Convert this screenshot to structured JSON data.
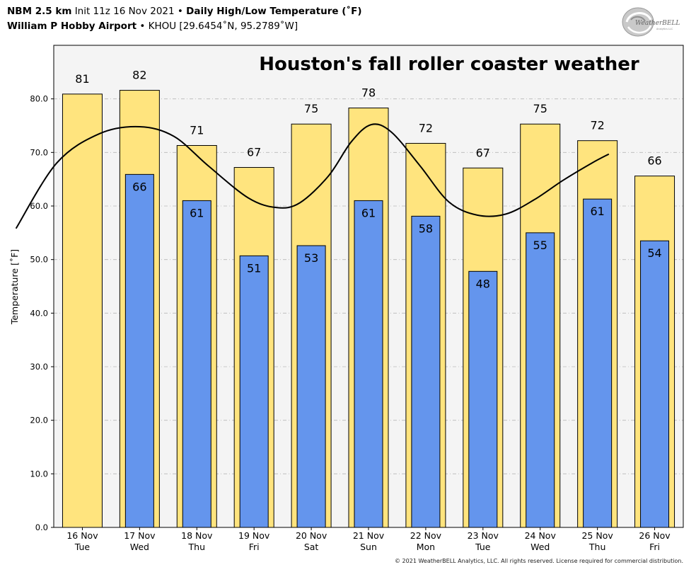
{
  "header": {
    "line1_model": "NBM 2.5 km",
    "line1_init": "Init 11z 16 Nov 2021",
    "line1_sep": "•",
    "line1_product": "Daily High/Low Temperature (˚F)",
    "line2_station": "William P Hobby Airport",
    "line2_sep": "•",
    "line2_coords": "KHOU [29.6454˚N, 95.2789˚W]"
  },
  "logo": {
    "text": "WeatherBELL",
    "icon": "weatherbell-swirl-logo"
  },
  "footer": {
    "copyright": "© 2021 WeatherBELL Analytics, LLC. All rights reserved. License required for commercial distribution."
  },
  "chart_data": {
    "type": "bar",
    "title": "Houston's fall roller coaster weather",
    "ylabel": "Temperature [˚F]",
    "ylim": [
      0,
      90
    ],
    "yticks": [
      "0.0",
      "10.0",
      "20.0",
      "30.0",
      "40.0",
      "50.0",
      "60.0",
      "70.0",
      "80.0"
    ],
    "grid": true,
    "categories": [
      {
        "date": "16 Nov",
        "day": "Tue"
      },
      {
        "date": "17 Nov",
        "day": "Wed"
      },
      {
        "date": "18 Nov",
        "day": "Thu"
      },
      {
        "date": "19 Nov",
        "day": "Fri"
      },
      {
        "date": "20 Nov",
        "day": "Sat"
      },
      {
        "date": "21 Nov",
        "day": "Sun"
      },
      {
        "date": "22 Nov",
        "day": "Mon"
      },
      {
        "date": "23 Nov",
        "day": "Tue"
      },
      {
        "date": "24 Nov",
        "day": "Wed"
      },
      {
        "date": "25 Nov",
        "day": "Thu"
      },
      {
        "date": "26 Nov",
        "day": "Fri"
      }
    ],
    "series": [
      {
        "key": "high",
        "color": "#FFE47E",
        "values": [
          80.9,
          81.6,
          71.3,
          67.2,
          75.3,
          78.3,
          71.7,
          67.1,
          75.3,
          72.2,
          65.6
        ],
        "labels": [
          "81",
          "82",
          "71",
          "67",
          "75",
          "78",
          "72",
          "67",
          "75",
          "72",
          "66"
        ]
      },
      {
        "key": "low",
        "color": "#6495ED",
        "values": [
          null,
          65.9,
          61.0,
          50.7,
          52.6,
          61.0,
          58.1,
          47.8,
          55.0,
          61.3,
          53.5
        ],
        "labels": [
          "",
          "66",
          "61",
          "51",
          "53",
          "61",
          "58",
          "48",
          "55",
          "61",
          "54"
        ]
      }
    ],
    "trend_curve": {
      "color": "#000000",
      "points": [
        [
          -1.16,
          55.8
        ],
        [
          -0.45,
          68.0
        ],
        [
          0.3,
          73.5
        ],
        [
          1.0,
          74.8
        ],
        [
          1.6,
          73.0
        ],
        [
          2.2,
          67.5
        ],
        [
          2.9,
          61.5
        ],
        [
          3.4,
          59.7
        ],
        [
          3.8,
          60.6
        ],
        [
          4.3,
          65.6
        ],
        [
          4.7,
          72.0
        ],
        [
          5.05,
          75.2
        ],
        [
          5.4,
          73.8
        ],
        [
          5.9,
          67.5
        ],
        [
          6.4,
          60.8
        ],
        [
          6.9,
          58.3
        ],
        [
          7.4,
          58.5
        ],
        [
          7.9,
          61.2
        ],
        [
          8.4,
          64.8
        ],
        [
          8.9,
          68.0
        ],
        [
          9.2,
          69.7
        ]
      ]
    }
  }
}
